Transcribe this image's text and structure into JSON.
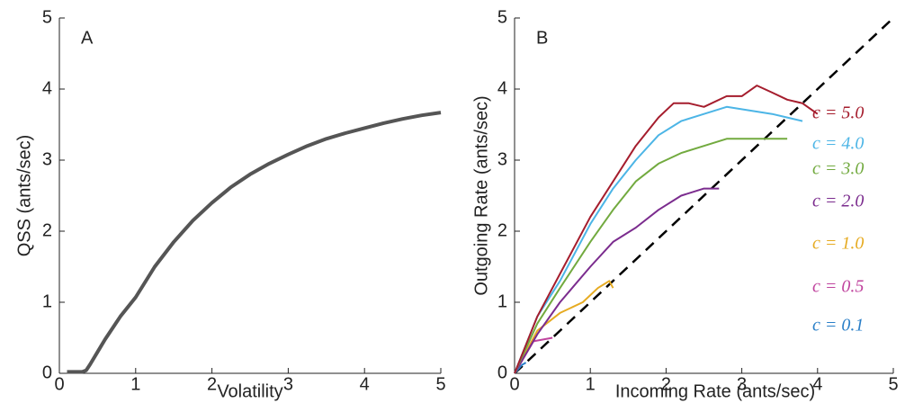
{
  "chart_data": [
    {
      "type": "line",
      "label": "A",
      "x_label": "Volatility",
      "y_label": "QSS (ants/sec)",
      "x": [
        0.1,
        0.2,
        0.3,
        0.35,
        0.4,
        0.5,
        0.6,
        0.8,
        1.0,
        1.25,
        1.5,
        1.75,
        2.0,
        2.25,
        2.5,
        2.75,
        3.0,
        3.25,
        3.5,
        3.75,
        4.0,
        4.25,
        4.5,
        4.75,
        5.0
      ],
      "values": [
        0.02,
        0.02,
        0.02,
        0.04,
        0.12,
        0.3,
        0.48,
        0.8,
        1.07,
        1.5,
        1.85,
        2.15,
        2.4,
        2.62,
        2.8,
        2.95,
        3.08,
        3.2,
        3.3,
        3.38,
        3.45,
        3.52,
        3.58,
        3.63,
        3.67
      ],
      "color": "#555555",
      "xlim": [
        0,
        5
      ],
      "ylim": [
        0,
        5
      ],
      "xticks": [
        0,
        1,
        2,
        3,
        4,
        5
      ],
      "yticks": [
        0,
        1,
        2,
        3,
        4,
        5
      ]
    },
    {
      "type": "line",
      "label": "B",
      "x_label": "Incoming Rate (ants/sec)",
      "y_label": "Outgoing Rate (ants/sec)",
      "xlim": [
        0,
        5
      ],
      "ylim": [
        0,
        5
      ],
      "xticks": [
        0,
        1,
        2,
        3,
        4,
        5
      ],
      "yticks": [
        0,
        1,
        2,
        3,
        4,
        5
      ],
      "reference_line": {
        "x": [
          0,
          5
        ],
        "values": [
          0,
          5
        ],
        "color": "#000000",
        "dashed": true
      },
      "series": [
        {
          "name": "c = 5.0",
          "color": "#a51d2d",
          "x": [
            0,
            0.3,
            0.6,
            1.0,
            1.3,
            1.6,
            1.9,
            2.1,
            2.3,
            2.5,
            2.8,
            3.0,
            3.2,
            3.4,
            3.6,
            3.8,
            4.0
          ],
          "values": [
            0,
            0.8,
            1.4,
            2.2,
            2.7,
            3.2,
            3.6,
            3.8,
            3.8,
            3.75,
            3.9,
            3.9,
            4.05,
            3.95,
            3.85,
            3.8,
            3.65
          ]
        },
        {
          "name": "c = 4.0",
          "color": "#4cb5e6",
          "x": [
            0,
            0.3,
            0.6,
            1.0,
            1.3,
            1.6,
            1.9,
            2.2,
            2.5,
            2.8,
            3.1,
            3.4,
            3.6,
            3.8
          ],
          "values": [
            0,
            0.8,
            1.3,
            2.1,
            2.6,
            3.0,
            3.35,
            3.55,
            3.65,
            3.75,
            3.7,
            3.65,
            3.6,
            3.55
          ]
        },
        {
          "name": "c = 3.0",
          "color": "#72aa3f",
          "x": [
            0,
            0.3,
            0.6,
            1.0,
            1.3,
            1.6,
            1.9,
            2.2,
            2.5,
            2.8,
            3.1,
            3.4,
            3.6
          ],
          "values": [
            0,
            0.7,
            1.2,
            1.85,
            2.3,
            2.7,
            2.95,
            3.1,
            3.2,
            3.3,
            3.3,
            3.3,
            3.3
          ]
        },
        {
          "name": "c = 2.0",
          "color": "#7b2c8e",
          "x": [
            0,
            0.3,
            0.6,
            1.0,
            1.3,
            1.6,
            1.9,
            2.2,
            2.5,
            2.7
          ],
          "values": [
            0,
            0.55,
            1.0,
            1.5,
            1.85,
            2.05,
            2.3,
            2.5,
            2.6,
            2.6
          ]
        },
        {
          "name": "c = 1.0",
          "color": "#e6ab22",
          "x": [
            0,
            0.3,
            0.6,
            0.9,
            1.1,
            1.25,
            1.3
          ],
          "values": [
            0,
            0.6,
            0.85,
            1.0,
            1.2,
            1.3,
            1.2
          ]
        },
        {
          "name": "c = 0.5",
          "color": "#c0449e",
          "x": [
            0,
            0.25,
            0.5
          ],
          "values": [
            0,
            0.45,
            0.5
          ]
        },
        {
          "name": "c = 0.1",
          "color": "#2a7fc8",
          "x": [
            0,
            0.1,
            0.15
          ],
          "values": [
            0,
            0.12,
            0.15
          ]
        }
      ]
    }
  ]
}
